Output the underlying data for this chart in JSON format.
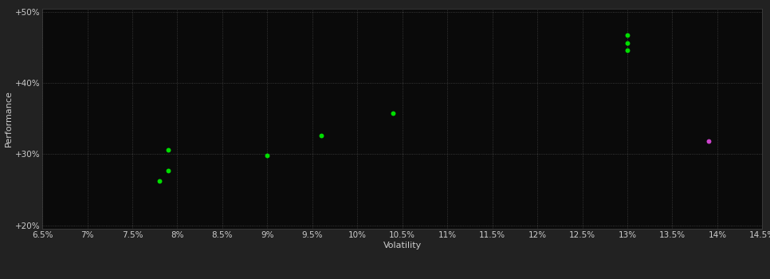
{
  "background_color": "#222222",
  "plot_background_color": "#0a0a0a",
  "grid_color": "#555555",
  "xlabel": "Volatility",
  "ylabel": "Performance",
  "xlim": [
    0.065,
    0.145
  ],
  "ylim": [
    0.195,
    0.505
  ],
  "xticks": [
    0.065,
    0.07,
    0.075,
    0.08,
    0.085,
    0.09,
    0.095,
    0.1,
    0.105,
    0.11,
    0.115,
    0.12,
    0.125,
    0.13,
    0.135,
    0.14,
    0.145
  ],
  "yticks": [
    0.2,
    0.3,
    0.4,
    0.5
  ],
  "ytick_labels": [
    "+20%",
    "+30%",
    "+40%",
    "+50%"
  ],
  "xtick_labels": [
    "6.5%",
    "7%",
    "7.5%",
    "8%",
    "8.5%",
    "9%",
    "9.5%",
    "10%",
    "10.5%",
    "11%",
    "11.5%",
    "12%",
    "12.5%",
    "13%",
    "13.5%",
    "14%",
    "14.5%"
  ],
  "green_points": [
    [
      0.079,
      0.306
    ],
    [
      0.079,
      0.277
    ],
    [
      0.078,
      0.262
    ],
    [
      0.09,
      0.298
    ],
    [
      0.096,
      0.326
    ],
    [
      0.104,
      0.358
    ],
    [
      0.13,
      0.468
    ],
    [
      0.13,
      0.456
    ],
    [
      0.13,
      0.446
    ]
  ],
  "magenta_points": [
    [
      0.139,
      0.318
    ]
  ],
  "green_color": "#00dd00",
  "magenta_color": "#cc44cc",
  "marker_size": 18,
  "text_color": "#cccccc",
  "axis_label_fontsize": 8,
  "tick_fontsize": 7.5
}
